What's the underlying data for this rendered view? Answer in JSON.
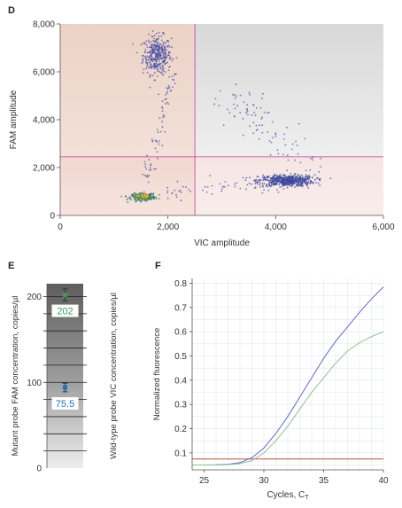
{
  "chart_data": [
    {
      "panel": "D",
      "type": "scatter",
      "xlabel": "VIC amplitude",
      "ylabel": "FAM amplitude",
      "xlim": [
        0,
        6000
      ],
      "ylim": [
        0,
        8000
      ],
      "xticks": [
        "0",
        "2,000",
        "4,000",
        "6,000"
      ],
      "xtick_values": [
        0,
        2000,
        4000,
        6000
      ],
      "yticks": [
        "0",
        "2,000",
        "4,000",
        "6,000",
        "8,000"
      ],
      "ytick_values": [
        0,
        2000,
        4000,
        6000,
        8000
      ],
      "thresholds": {
        "x": 2500,
        "y": 2450
      },
      "threshold_color": "#c0399a",
      "quadrant_colors": [
        "#f2d9cf",
        "#e2e2e2",
        "#f5dfdc",
        "#ececec"
      ],
      "clusters": [
        {
          "x": 1800,
          "y": 6700,
          "sx": 130,
          "sy": 400,
          "n": 380,
          "color": "#4a52a6"
        },
        {
          "x": 4200,
          "y": 1450,
          "sx": 260,
          "sy": 120,
          "n": 520,
          "color": "#3a4699"
        },
        {
          "x": 1550,
          "y": 780,
          "sx": 110,
          "sy": 70,
          "n": 260,
          "color": "#2f7c5b"
        }
      ],
      "hotspot": {
        "x": 1550,
        "y": 800,
        "color": "#e0b030"
      }
    },
    {
      "panel": "E",
      "type": "bar",
      "ylabel_left": "Mutant probe FAM concentration, copies/µl",
      "ylabel_right": "Wild-type probe VIC concentration, copies/µl",
      "ylim": [
        0,
        215
      ],
      "yticks": [
        "0",
        "100",
        "200"
      ],
      "ytick_values": [
        0,
        100,
        200
      ],
      "values": [
        {
          "value": 202,
          "label": "202",
          "err": 7,
          "color": "#3a9a5a"
        },
        {
          "value": 94,
          "label": "75.5",
          "err": 5,
          "color": "#1f73b7"
        }
      ]
    },
    {
      "panel": "F",
      "type": "line",
      "xlabel": "Cycles, C",
      "xlabel_sub": "T",
      "ylabel": "Normalized fluorescence",
      "xlim": [
        24,
        40
      ],
      "ylim": [
        0.03,
        0.82
      ],
      "xticks": [
        "25",
        "30",
        "35",
        "40"
      ],
      "xtick_values": [
        25,
        30,
        35,
        40
      ],
      "yticks": [
        "0.1",
        "0.2",
        "0.3",
        "0.4",
        "0.5",
        "0.6",
        "0.7",
        "0.8"
      ],
      "ytick_values": [
        0.1,
        0.2,
        0.3,
        0.4,
        0.5,
        0.6,
        0.7,
        0.8
      ],
      "threshold": 0.075,
      "threshold_color": "#b5533c",
      "series": [
        {
          "color": "#6a66c4",
          "x": [
            24,
            25,
            26,
            27,
            28,
            29,
            30,
            31,
            32,
            33,
            34,
            35,
            36,
            37,
            38,
            39,
            40
          ],
          "y": [
            0.05,
            0.05,
            0.051,
            0.053,
            0.06,
            0.08,
            0.12,
            0.18,
            0.25,
            0.33,
            0.41,
            0.49,
            0.56,
            0.62,
            0.68,
            0.735,
            0.785
          ]
        },
        {
          "color": "#8cc28c",
          "x": [
            24,
            25,
            26,
            27,
            28,
            29,
            30,
            31,
            32,
            33,
            34,
            35,
            36,
            37,
            38,
            39,
            40
          ],
          "y": [
            0.05,
            0.05,
            0.05,
            0.052,
            0.056,
            0.068,
            0.1,
            0.15,
            0.21,
            0.28,
            0.35,
            0.41,
            0.47,
            0.52,
            0.555,
            0.58,
            0.6
          ]
        }
      ]
    }
  ],
  "panels": {
    "d": "D",
    "e": "E",
    "f": "F"
  }
}
